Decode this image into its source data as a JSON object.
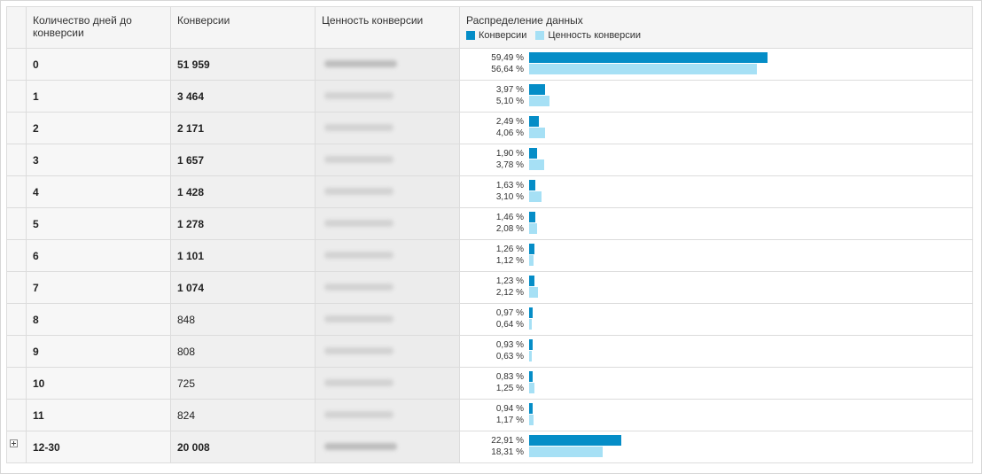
{
  "header": {
    "days_label": "Количество дней до конверсии",
    "conversions_label": "Конверсии",
    "value_label": "Ценность конверсии",
    "distribution_label": "Распределение данных"
  },
  "legend": [
    {
      "label": "Конверсии",
      "color": "#058dc7"
    },
    {
      "label": "Ценность конверсии",
      "color": "#a6e0f5"
    }
  ],
  "colors": {
    "conversions": "#058dc7",
    "value": "#a6e0f5"
  },
  "rows": [
    {
      "days": "0",
      "conversions": "51 959",
      "value_hidden": true,
      "pct_conv": "59,49 %",
      "pct_value": "56,64 %",
      "conv_share": 59.49,
      "value_share": 56.64
    },
    {
      "days": "1",
      "conversions": "3 464",
      "value_hidden": true,
      "pct_conv": "3,97 %",
      "pct_value": "5,10 %",
      "conv_share": 3.97,
      "value_share": 5.1
    },
    {
      "days": "2",
      "conversions": "2 171",
      "value_hidden": true,
      "pct_conv": "2,49 %",
      "pct_value": "4,06 %",
      "conv_share": 2.49,
      "value_share": 4.06
    },
    {
      "days": "3",
      "conversions": "1 657",
      "value_hidden": true,
      "pct_conv": "1,90 %",
      "pct_value": "3,78 %",
      "conv_share": 1.9,
      "value_share": 3.78
    },
    {
      "days": "4",
      "conversions": "1 428",
      "value_hidden": true,
      "pct_conv": "1,63 %",
      "pct_value": "3,10 %",
      "conv_share": 1.63,
      "value_share": 3.1
    },
    {
      "days": "5",
      "conversions": "1 278",
      "value_hidden": true,
      "pct_conv": "1,46 %",
      "pct_value": "2,08 %",
      "conv_share": 1.46,
      "value_share": 2.08
    },
    {
      "days": "6",
      "conversions": "1 101",
      "value_hidden": true,
      "pct_conv": "1,26 %",
      "pct_value": "1,12 %",
      "conv_share": 1.26,
      "value_share": 1.12
    },
    {
      "days": "7",
      "conversions": "1 074",
      "value_hidden": true,
      "pct_conv": "1,23 %",
      "pct_value": "2,12 %",
      "conv_share": 1.23,
      "value_share": 2.12
    },
    {
      "days": "8",
      "conversions": "848",
      "value_hidden": true,
      "pct_conv": "0,97 %",
      "pct_value": "0,64 %",
      "conv_share": 0.97,
      "value_share": 0.64
    },
    {
      "days": "9",
      "conversions": "808",
      "value_hidden": true,
      "pct_conv": "0,93 %",
      "pct_value": "0,63 %",
      "conv_share": 0.93,
      "value_share": 0.63
    },
    {
      "days": "10",
      "conversions": "725",
      "value_hidden": true,
      "pct_conv": "0,83 %",
      "pct_value": "1,25 %",
      "conv_share": 0.83,
      "value_share": 1.25
    },
    {
      "days": "11",
      "conversions": "824",
      "value_hidden": true,
      "pct_conv": "0,94 %",
      "pct_value": "1,17 %",
      "conv_share": 0.94,
      "value_share": 1.17
    },
    {
      "days": "12-30",
      "conversions": "20 008",
      "value_hidden": true,
      "pct_conv": "22,91 %",
      "pct_value": "18,31 %",
      "conv_share": 22.91,
      "value_share": 18.31,
      "expandable": true
    }
  ]
}
